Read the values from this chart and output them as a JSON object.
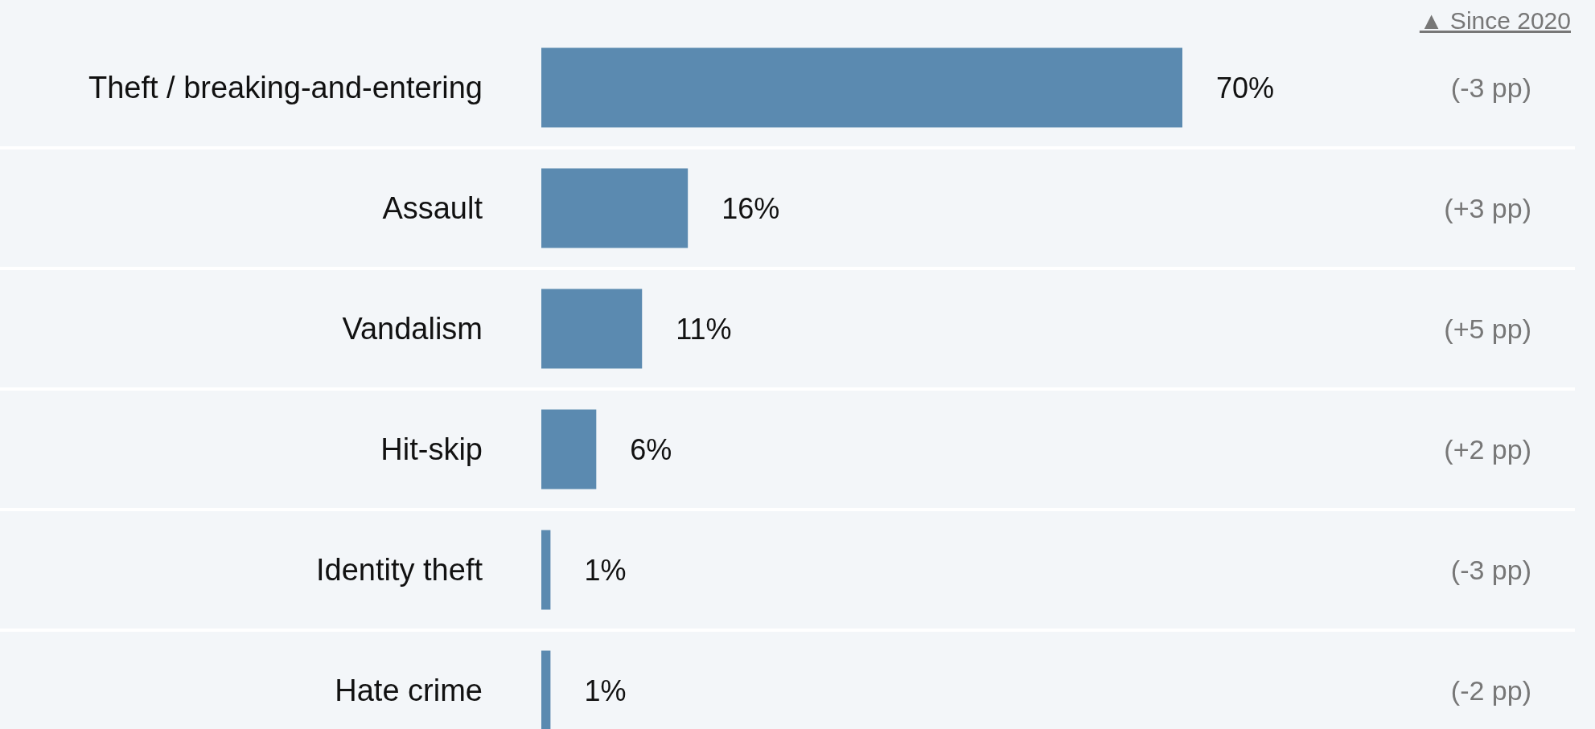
{
  "chart_data": {
    "type": "bar",
    "orientation": "horizontal",
    "categories": [
      "Theft / breaking-and-entering",
      "Assault",
      "Vandalism",
      "Hit-skip",
      "Identity theft",
      "Hate crime"
    ],
    "values": [
      70,
      16,
      11,
      6,
      1,
      1
    ],
    "value_labels": [
      "70%",
      "16%",
      "11%",
      "6%",
      "1%",
      "1%"
    ],
    "color": "#5b8ab0",
    "annotations": [
      "▲ Since 2020",
      "(-3 pp)",
      "(+3 pp)",
      "(+5 pp)",
      "(+2 pp)",
      "(-3 pp)",
      "(-2 pp)"
    ]
  }
}
